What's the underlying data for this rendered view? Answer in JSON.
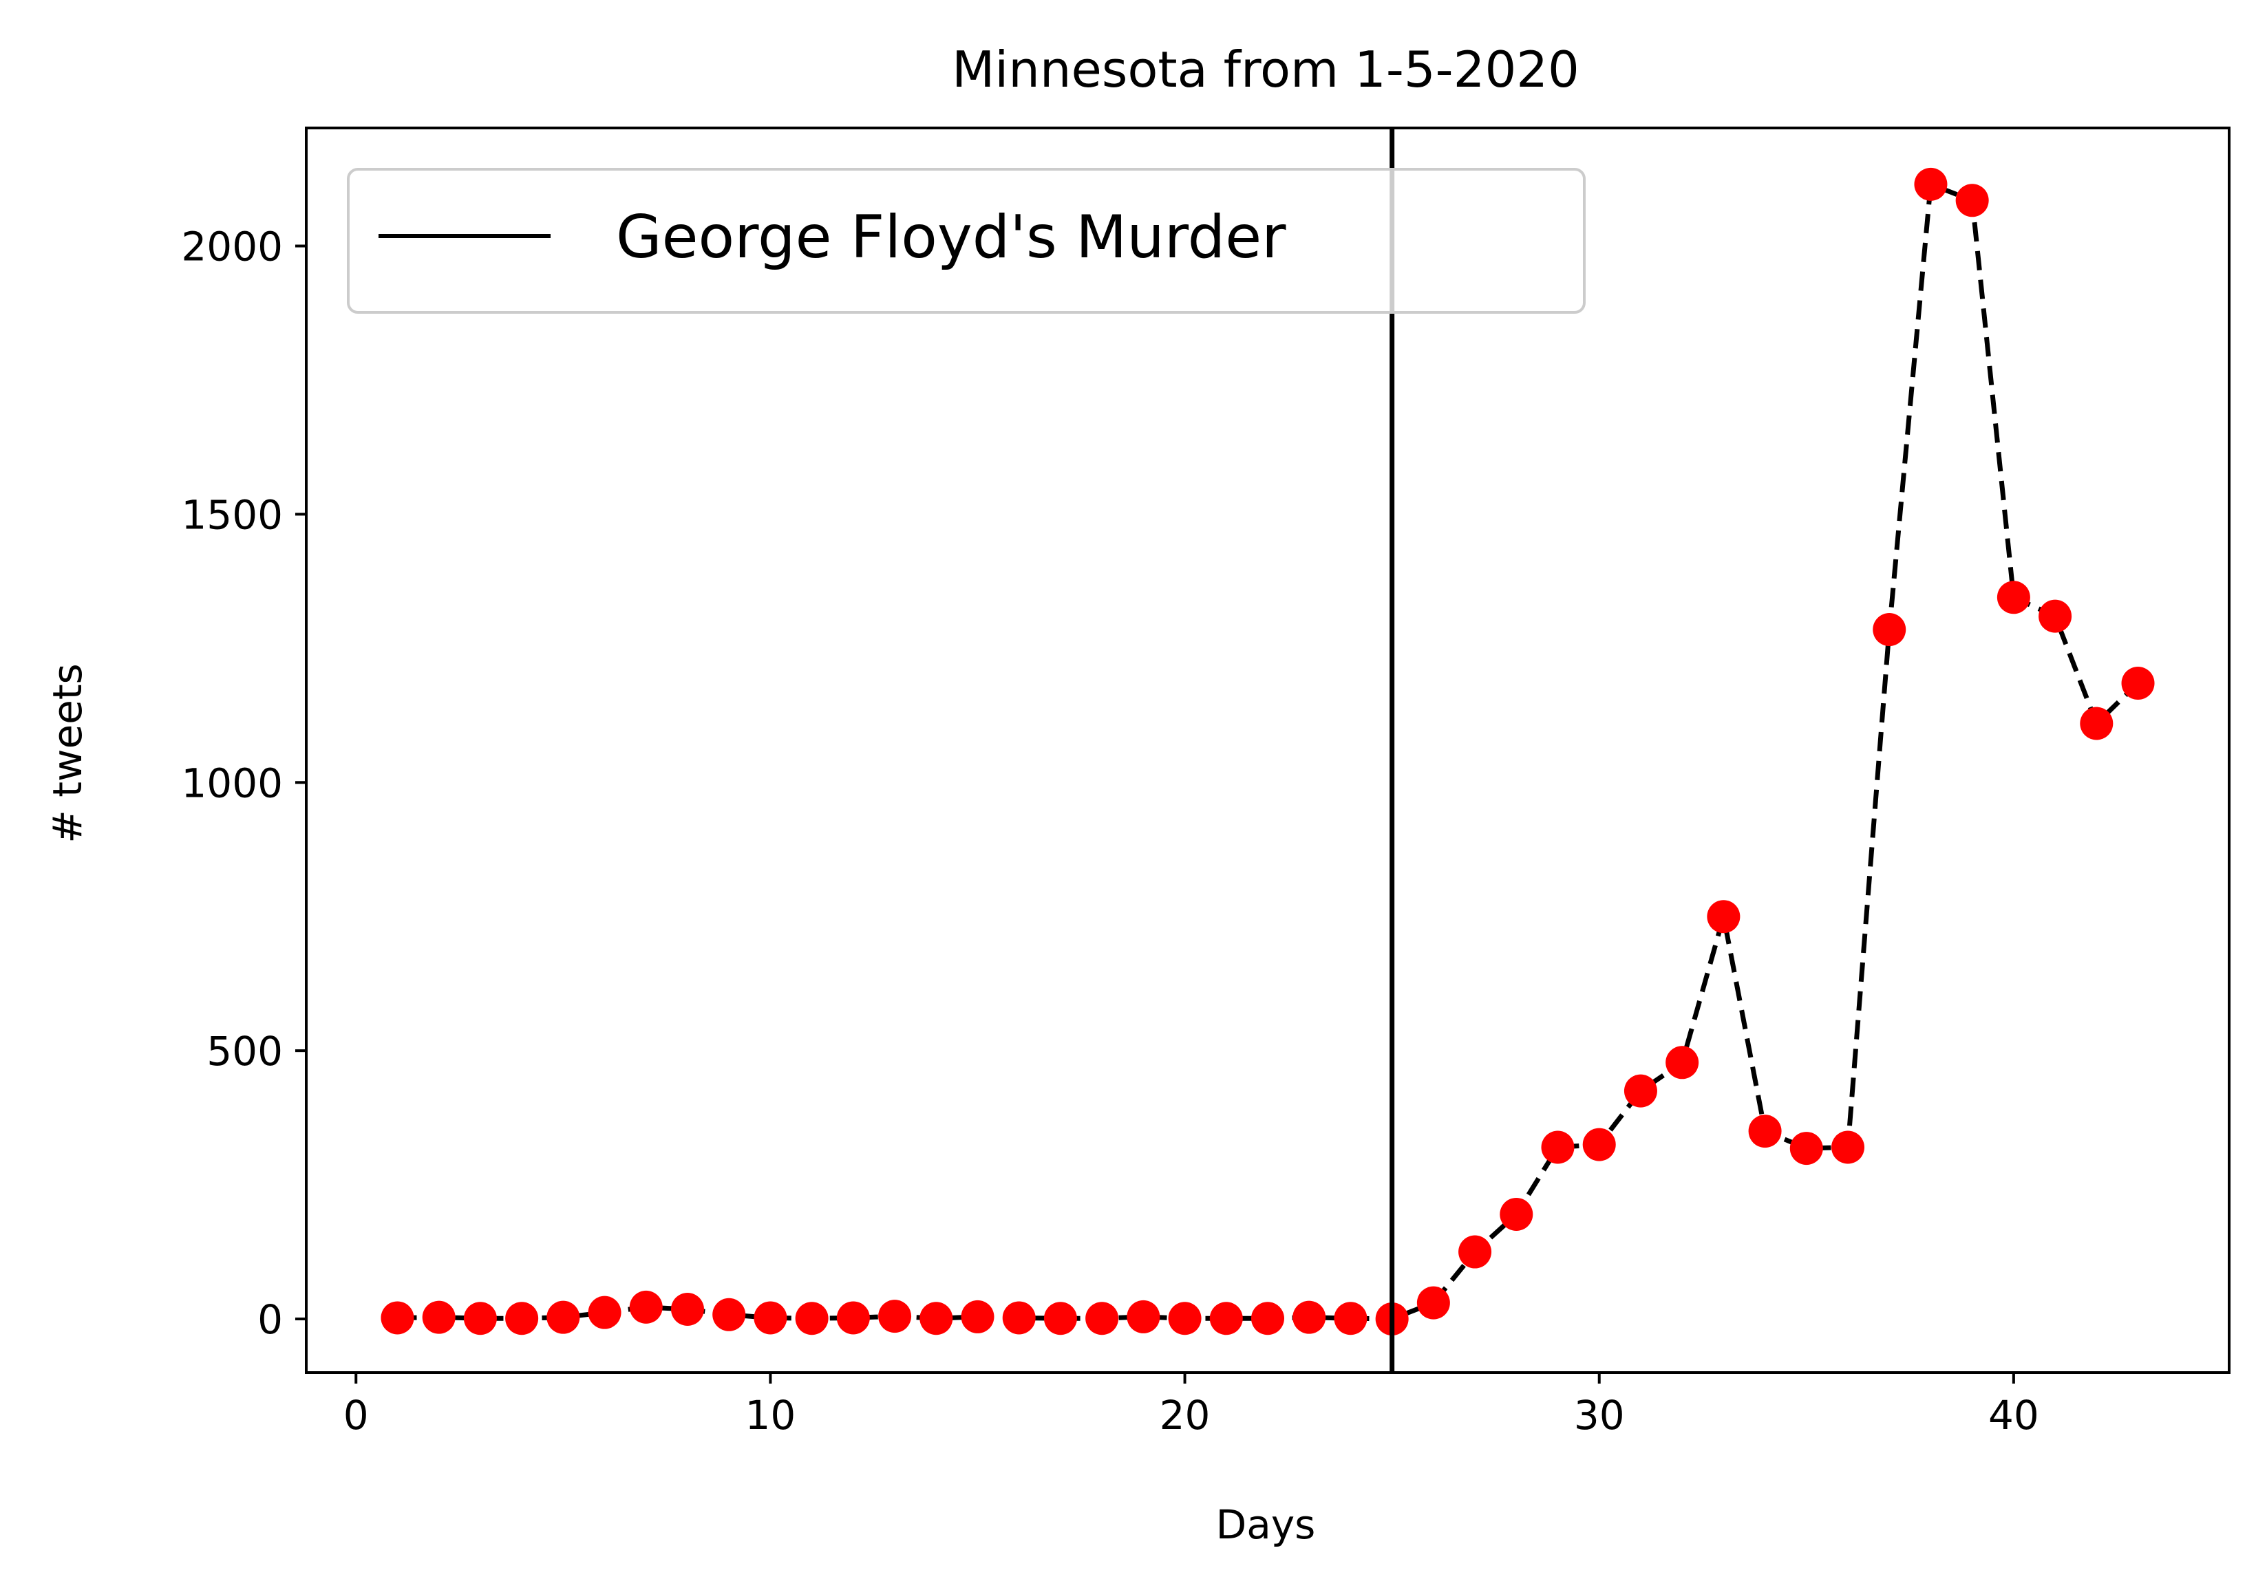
{
  "chart_data": {
    "type": "line",
    "title": "Minnesota from 1-5-2020",
    "xlabel": "Days",
    "ylabel": "# tweets",
    "xlim": [
      -1.2,
      45.2
    ],
    "ylim": [
      -100,
      2220
    ],
    "xticks": [
      0,
      10,
      20,
      30,
      40
    ],
    "yticks": [
      0,
      500,
      1000,
      1500,
      2000
    ],
    "grid": false,
    "legend_position": "top-left",
    "series": [
      {
        "style": "dashed line with red circle markers",
        "line_color": "#000000",
        "marker_color": "#ff0000",
        "x": [
          1,
          2,
          3,
          4,
          5,
          6,
          7,
          8,
          9,
          10,
          11,
          12,
          13,
          14,
          15,
          16,
          17,
          18,
          19,
          20,
          21,
          22,
          23,
          24,
          25,
          26,
          27,
          28,
          29,
          30,
          31,
          32,
          33,
          34,
          35,
          36,
          37,
          38,
          39,
          40,
          41,
          42,
          43
        ],
        "y": [
          2,
          3,
          1,
          1,
          3,
          12,
          22,
          18,
          8,
          2,
          1,
          2,
          5,
          1,
          4,
          2,
          1,
          1,
          4,
          1,
          1,
          1,
          3,
          1,
          0,
          30,
          125,
          195,
          320,
          325,
          425,
          478,
          750,
          350,
          318,
          320,
          1285,
          2115,
          2085,
          1345,
          1310,
          1110,
          1185
        ]
      }
    ],
    "reference_lines": [
      {
        "orientation": "vertical",
        "x": 25,
        "color": "#000000",
        "label": "George Floyd's Murder"
      }
    ],
    "legend": [
      {
        "label": "George Floyd's Murder",
        "color": "#000000",
        "style": "solid"
      }
    ]
  }
}
